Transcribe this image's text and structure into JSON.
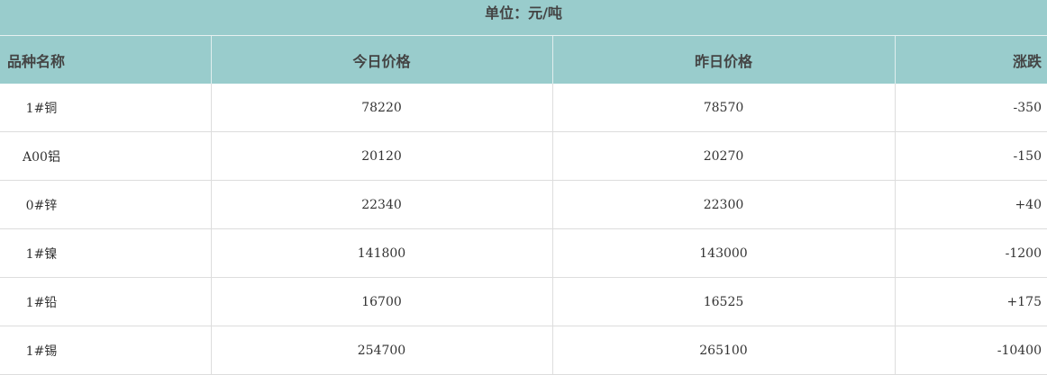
{
  "title": "单位：元/吨",
  "columns": [
    "品种名称",
    "今日价格",
    "昨日价格",
    "涨跌"
  ],
  "rows": [
    [
      "1#铜",
      "78220",
      "78570",
      "-350"
    ],
    [
      "A00铝",
      "20120",
      "20270",
      "-150"
    ],
    [
      "0#锌",
      "22340",
      "22300",
      "+40"
    ],
    [
      "1#镍",
      "141800",
      "143000",
      "-1200"
    ],
    [
      "1#铅",
      "16700",
      "16525",
      "+175"
    ],
    [
      "1#锡",
      "254700",
      "265100",
      "-10400"
    ]
  ],
  "colors": {
    "header_bg": "#99cccc",
    "border": "#dddddd"
  }
}
